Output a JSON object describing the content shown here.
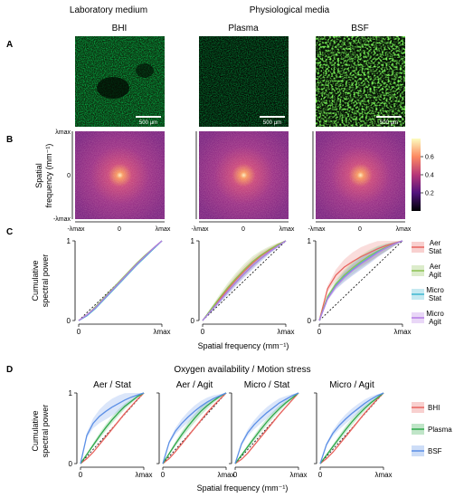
{
  "panel_labels": {
    "a": "A",
    "b": "B",
    "c": "C",
    "d": "D"
  },
  "headers": {
    "lab": "Laboratory medium",
    "phys": "Physiological media",
    "bhi": "BHI",
    "plasma": "Plasma",
    "bsf": "BSF"
  },
  "micrographs": [
    {
      "condition": "BHI",
      "scalebar": "500 µm"
    },
    {
      "condition": "Plasma",
      "scalebar": "500 µm"
    },
    {
      "condition": "BSF",
      "scalebar": "500 µm"
    }
  ],
  "panel_b": {
    "ylabel_line1": "Spatial",
    "ylabel_line2": "frequency (mm⁻¹)",
    "ticks": {
      "pos": "λmax",
      "zero": "0",
      "neg": "-λmax"
    },
    "colorbar": {
      "ticks": [
        "0.6",
        "0.4",
        "0.2"
      ],
      "values": [
        0.6,
        0.4,
        0.2
      ],
      "range": [
        0.0,
        0.8
      ]
    }
  },
  "chart_data": [
    {
      "panel": "C",
      "type": "line",
      "ylabel_line1": "Cumulative",
      "ylabel_line2": "spectral power",
      "xlabel": "Spatial frequency (mm⁻¹)",
      "xticks": [
        "0",
        "λmax"
      ],
      "yticks": [
        "0",
        "1"
      ],
      "ylim": [
        0,
        1
      ],
      "legend": [
        {
          "line1": "Aer",
          "line2": "Stat",
          "color": "#e8645f"
        },
        {
          "line1": "Aer",
          "line2": "Agit",
          "color": "#8cc152"
        },
        {
          "line1": "Micro",
          "line2": "Stat",
          "color": "#3fb6cf"
        },
        {
          "line1": "Micro",
          "line2": "Agit",
          "color": "#b57be6"
        }
      ],
      "x": [
        0,
        0.1,
        0.2,
        0.3,
        0.4,
        0.5,
        0.6,
        0.7,
        0.8,
        0.9,
        1.0
      ],
      "subplots": [
        {
          "medium": "BHI",
          "series": [
            {
              "name": "Aer Stat",
              "values": [
                0,
                0.07,
                0.16,
                0.27,
                0.38,
                0.49,
                0.6,
                0.71,
                0.81,
                0.91,
                1.0
              ],
              "band": 0.02
            },
            {
              "name": "Aer Agit",
              "values": [
                0,
                0.07,
                0.17,
                0.28,
                0.39,
                0.5,
                0.61,
                0.72,
                0.82,
                0.91,
                1.0
              ],
              "band": 0.02
            },
            {
              "name": "Micro Stat",
              "values": [
                0,
                0.06,
                0.15,
                0.26,
                0.37,
                0.48,
                0.59,
                0.7,
                0.8,
                0.9,
                1.0
              ],
              "band": 0.02
            },
            {
              "name": "Micro Agit",
              "values": [
                0,
                0.07,
                0.16,
                0.27,
                0.38,
                0.49,
                0.6,
                0.71,
                0.81,
                0.91,
                1.0
              ],
              "band": 0.02
            }
          ]
        },
        {
          "medium": "Plasma",
          "series": [
            {
              "name": "Aer Stat",
              "values": [
                0,
                0.13,
                0.26,
                0.39,
                0.51,
                0.62,
                0.72,
                0.81,
                0.88,
                0.95,
                1.0
              ],
              "band": 0.06
            },
            {
              "name": "Aer Agit",
              "values": [
                0,
                0.14,
                0.28,
                0.41,
                0.53,
                0.64,
                0.74,
                0.82,
                0.89,
                0.95,
                1.0
              ],
              "band": 0.07
            },
            {
              "name": "Micro Stat",
              "values": [
                0,
                0.12,
                0.24,
                0.36,
                0.48,
                0.59,
                0.69,
                0.78,
                0.86,
                0.93,
                1.0
              ],
              "band": 0.05
            },
            {
              "name": "Micro Agit",
              "values": [
                0,
                0.12,
                0.24,
                0.36,
                0.48,
                0.59,
                0.69,
                0.78,
                0.86,
                0.93,
                1.0
              ],
              "band": 0.05
            }
          ]
        },
        {
          "medium": "BSF",
          "series": [
            {
              "name": "Aer Stat",
              "values": [
                0,
                0.4,
                0.57,
                0.67,
                0.74,
                0.8,
                0.85,
                0.9,
                0.94,
                0.97,
                1.0
              ],
              "band": 0.12
            },
            {
              "name": "Aer Agit",
              "values": [
                0,
                0.3,
                0.46,
                0.57,
                0.66,
                0.74,
                0.81,
                0.87,
                0.92,
                0.96,
                1.0
              ],
              "band": 0.08
            },
            {
              "name": "Micro Stat",
              "values": [
                0,
                0.28,
                0.44,
                0.55,
                0.64,
                0.72,
                0.79,
                0.86,
                0.91,
                0.96,
                1.0
              ],
              "band": 0.08
            },
            {
              "name": "Micro Agit",
              "values": [
                0,
                0.27,
                0.43,
                0.54,
                0.63,
                0.71,
                0.78,
                0.85,
                0.91,
                0.96,
                1.0
              ],
              "band": 0.07
            }
          ]
        }
      ]
    },
    {
      "panel": "D",
      "type": "line",
      "title": "Oxygen availability / Motion stress",
      "ylabel_line1": "Cumulative",
      "ylabel_line2": "spectral power",
      "xlabel": "Spatial frequency (mm⁻¹)",
      "xticks": [
        "0",
        "λmax"
      ],
      "yticks": [
        "0",
        "1"
      ],
      "ylim": [
        0,
        1
      ],
      "legend": [
        {
          "name": "BHI",
          "color": "#e8645f"
        },
        {
          "name": "Plasma",
          "color": "#2ea84a"
        },
        {
          "name": "BSF",
          "color": "#5b8fe6"
        }
      ],
      "x": [
        0,
        0.1,
        0.2,
        0.3,
        0.4,
        0.5,
        0.6,
        0.7,
        0.8,
        0.9,
        1.0
      ],
      "subplots": [
        {
          "title": "Aer / Stat",
          "series": [
            {
              "name": "BHI",
              "values": [
                0,
                0.07,
                0.16,
                0.27,
                0.38,
                0.49,
                0.6,
                0.71,
                0.81,
                0.91,
                1.0
              ],
              "band": 0.02
            },
            {
              "name": "Plasma",
              "values": [
                0,
                0.13,
                0.26,
                0.39,
                0.51,
                0.62,
                0.72,
                0.81,
                0.88,
                0.95,
                1.0
              ],
              "band": 0.05
            },
            {
              "name": "BSF",
              "values": [
                0,
                0.4,
                0.57,
                0.67,
                0.74,
                0.8,
                0.85,
                0.9,
                0.94,
                0.97,
                1.0
              ],
              "band": 0.12
            }
          ]
        },
        {
          "title": "Aer / Agit",
          "series": [
            {
              "name": "BHI",
              "values": [
                0,
                0.07,
                0.17,
                0.28,
                0.39,
                0.5,
                0.61,
                0.72,
                0.82,
                0.91,
                1.0
              ],
              "band": 0.02
            },
            {
              "name": "Plasma",
              "values": [
                0,
                0.14,
                0.28,
                0.41,
                0.53,
                0.64,
                0.74,
                0.82,
                0.89,
                0.95,
                1.0
              ],
              "band": 0.06
            },
            {
              "name": "BSF",
              "values": [
                0,
                0.3,
                0.46,
                0.57,
                0.66,
                0.74,
                0.81,
                0.87,
                0.92,
                0.96,
                1.0
              ],
              "band": 0.08
            }
          ]
        },
        {
          "title": "Micro / Stat",
          "series": [
            {
              "name": "BHI",
              "values": [
                0,
                0.06,
                0.15,
                0.26,
                0.37,
                0.48,
                0.59,
                0.7,
                0.8,
                0.9,
                1.0
              ],
              "band": 0.02
            },
            {
              "name": "Plasma",
              "values": [
                0,
                0.12,
                0.24,
                0.36,
                0.48,
                0.59,
                0.69,
                0.78,
                0.86,
                0.93,
                1.0
              ],
              "band": 0.05
            },
            {
              "name": "BSF",
              "values": [
                0,
                0.28,
                0.44,
                0.55,
                0.64,
                0.72,
                0.79,
                0.86,
                0.91,
                0.96,
                1.0
              ],
              "band": 0.08
            }
          ]
        },
        {
          "title": "Micro / Agit",
          "series": [
            {
              "name": "BHI",
              "values": [
                0,
                0.07,
                0.16,
                0.27,
                0.38,
                0.49,
                0.6,
                0.71,
                0.81,
                0.91,
                1.0
              ],
              "band": 0.02
            },
            {
              "name": "Plasma",
              "values": [
                0,
                0.12,
                0.24,
                0.36,
                0.48,
                0.59,
                0.69,
                0.78,
                0.86,
                0.93,
                1.0
              ],
              "band": 0.05
            },
            {
              "name": "BSF",
              "values": [
                0,
                0.27,
                0.43,
                0.54,
                0.63,
                0.71,
                0.78,
                0.85,
                0.91,
                0.96,
                1.0
              ],
              "band": 0.07
            }
          ]
        }
      ]
    }
  ]
}
